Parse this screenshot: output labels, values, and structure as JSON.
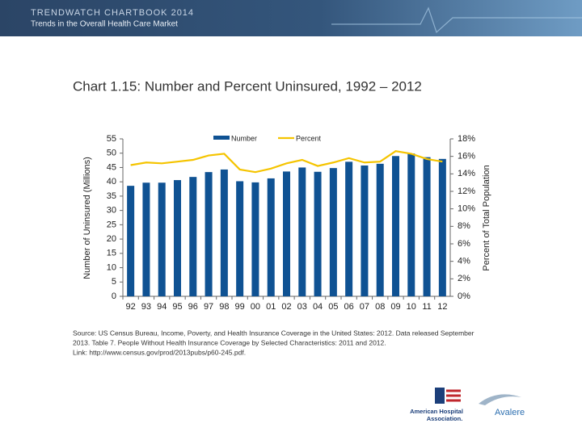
{
  "header": {
    "title": "TRENDWATCH CHARTBOOK 2014",
    "subtitle": "Trends in the Overall Health Care Market"
  },
  "chart_data": {
    "type": "bar-line",
    "title": "Chart 1.15: Number and Percent Uninsured, 1992 – 2012",
    "y_label": "Number of Uninsured (Millions)",
    "y2_label": "Percent of Total Population",
    "categories": [
      "92",
      "93",
      "94",
      "95",
      "96",
      "97",
      "98",
      "99",
      "00",
      "01",
      "02",
      "03",
      "04",
      "05",
      "06",
      "07",
      "08",
      "09",
      "10",
      "11",
      "12"
    ],
    "series": [
      {
        "name": "Number",
        "type": "bar",
        "color": "#0f5293",
        "values": [
          38.6,
          39.7,
          39.7,
          40.6,
          41.7,
          43.4,
          44.3,
          40.2,
          39.8,
          41.2,
          43.6,
          45.0,
          43.5,
          44.8,
          47.0,
          45.7,
          46.3,
          49.0,
          49.9,
          48.6,
          48.0
        ]
      },
      {
        "name": "Percent",
        "type": "line",
        "axis": "y2",
        "color": "#f5c400",
        "values": [
          15.0,
          15.3,
          15.2,
          15.4,
          15.6,
          16.1,
          16.3,
          14.5,
          14.2,
          14.6,
          15.2,
          15.6,
          14.9,
          15.3,
          15.8,
          15.3,
          15.4,
          16.6,
          16.3,
          15.7,
          15.4
        ]
      }
    ],
    "ylim": [
      0,
      55
    ],
    "yticks": [
      0,
      5,
      10,
      15,
      20,
      25,
      30,
      35,
      40,
      45,
      50,
      55
    ],
    "y2lim": [
      0,
      18
    ],
    "y2ticks": [
      {
        "value": 0,
        "label": "0%"
      },
      {
        "value": 2,
        "label": "2%"
      },
      {
        "value": 4,
        "label": "4%"
      },
      {
        "value": 6,
        "label": "6%"
      },
      {
        "value": 8,
        "label": "8%"
      },
      {
        "value": 10,
        "label": "10%"
      },
      {
        "value": 12,
        "label": "12%"
      },
      {
        "value": 14,
        "label": "14%"
      },
      {
        "value": 16,
        "label": "16%"
      },
      {
        "value": 18,
        "label": "18%"
      }
    ],
    "legend": "top",
    "grid": false
  },
  "source": [
    "Source: US Census Bureau, Income, Poverty, and Health Insurance Coverage in the United States: 2012. Data released September",
    "2013. Table 7. People Without Health Insurance Coverage by Selected Characteristics: 2011 and 2012.",
    "Link: http://www.census.gov/prod/2013pubs/p60-245.pdf."
  ],
  "logos": {
    "aha": [
      "American Hospital",
      "Association."
    ],
    "avalere": "Avalere"
  }
}
